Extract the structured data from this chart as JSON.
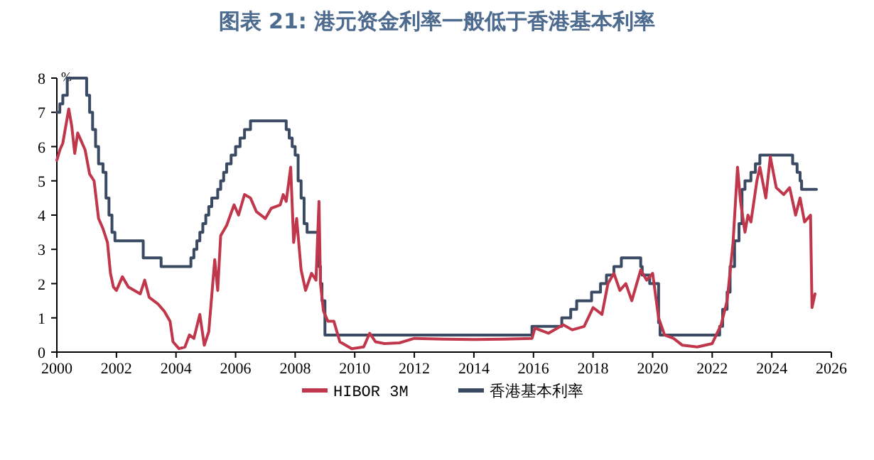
{
  "chart_data": {
    "type": "line",
    "title": "图表 21: 港元资金利率一般低于香港基本利率",
    "ylabel": "%",
    "xlim": [
      2000,
      2026
    ],
    "xticks": [
      2000,
      2002,
      2004,
      2006,
      2008,
      2010,
      2012,
      2014,
      2016,
      2018,
      2020,
      2022,
      2024,
      2026
    ],
    "ylim": [
      0,
      8
    ],
    "yticks": [
      0,
      1,
      2,
      3,
      4,
      5,
      6,
      7,
      8
    ],
    "grid": false,
    "legend": "bottom",
    "series": [
      {
        "name": "HIBOR 3M",
        "type": "line",
        "color": "#c0364a",
        "x": [
          2000.0,
          2000.1,
          2000.2,
          2000.3,
          2000.4,
          2000.5,
          2000.6,
          2000.7,
          2000.8,
          2000.95,
          2001.1,
          2001.25,
          2001.4,
          2001.55,
          2001.7,
          2001.8,
          2001.9,
          2002.0,
          2002.2,
          2002.4,
          2002.8,
          2002.95,
          2003.1,
          2003.4,
          2003.6,
          2003.8,
          2003.9,
          2004.1,
          2004.3,
          2004.45,
          2004.6,
          2004.8,
          2004.95,
          2005.1,
          2005.3,
          2005.4,
          2005.5,
          2005.7,
          2005.95,
          2006.1,
          2006.3,
          2006.5,
          2006.7,
          2007.0,
          2007.2,
          2007.5,
          2007.6,
          2007.7,
          2007.85,
          2007.95,
          2008.05,
          2008.2,
          2008.35,
          2008.55,
          2008.7,
          2008.8,
          2008.85,
          2008.95,
          2009.1,
          2009.3,
          2009.5,
          2009.9,
          2010.3,
          2010.5,
          2010.7,
          2011.0,
          2011.5,
          2012.0,
          2013.0,
          2014.0,
          2015.0,
          2015.95,
          2016.05,
          2016.5,
          2017.0,
          2017.3,
          2017.7,
          2018.0,
          2018.3,
          2018.5,
          2018.7,
          2018.9,
          2019.1,
          2019.3,
          2019.6,
          2019.8,
          2020.0,
          2020.2,
          2020.4,
          2020.7,
          2021.0,
          2021.5,
          2022.0,
          2022.3,
          2022.5,
          2022.7,
          2022.85,
          2022.95,
          2023.1,
          2023.2,
          2023.3,
          2023.5,
          2023.6,
          2023.8,
          2023.95,
          2024.15,
          2024.4,
          2024.6,
          2024.8,
          2024.95,
          2025.1,
          2025.3,
          2025.35,
          2025.45
        ],
        "values": [
          5.6,
          5.9,
          6.1,
          6.6,
          7.1,
          6.6,
          5.8,
          6.4,
          6.2,
          5.9,
          5.2,
          5.0,
          3.9,
          3.6,
          3.2,
          2.3,
          1.9,
          1.8,
          2.2,
          1.9,
          1.7,
          2.1,
          1.6,
          1.4,
          1.2,
          0.9,
          0.3,
          0.1,
          0.15,
          0.5,
          0.4,
          1.1,
          0.2,
          0.6,
          2.7,
          1.8,
          3.4,
          3.7,
          4.3,
          4.0,
          4.6,
          4.5,
          4.1,
          3.9,
          4.2,
          4.3,
          4.6,
          4.4,
          5.4,
          3.2,
          3.9,
          2.4,
          1.8,
          2.3,
          2.1,
          4.4,
          2.0,
          1.2,
          0.9,
          0.9,
          0.3,
          0.1,
          0.15,
          0.55,
          0.3,
          0.25,
          0.27,
          0.4,
          0.38,
          0.37,
          0.38,
          0.4,
          0.7,
          0.55,
          0.8,
          0.65,
          0.75,
          1.3,
          1.1,
          2.0,
          2.3,
          1.8,
          2.0,
          1.5,
          2.4,
          2.1,
          2.3,
          1.0,
          0.5,
          0.4,
          0.2,
          0.15,
          0.25,
          0.8,
          1.5,
          3.2,
          5.4,
          4.4,
          3.5,
          4.0,
          3.8,
          5.0,
          5.4,
          4.5,
          5.7,
          4.8,
          4.6,
          4.8,
          4.0,
          4.5,
          3.8,
          4.0,
          1.3,
          1.7
        ]
      },
      {
        "name": "香港基本利率",
        "type": "step",
        "color": "#3b4a63",
        "x": [
          2000.0,
          2000.1,
          2000.2,
          2000.35,
          2001.0,
          2001.1,
          2001.2,
          2001.3,
          2001.4,
          2001.55,
          2001.65,
          2001.75,
          2001.85,
          2001.95,
          2002.9,
          2003.5,
          2004.5,
          2004.6,
          2004.7,
          2004.8,
          2004.9,
          2005.0,
          2005.1,
          2005.2,
          2005.4,
          2005.5,
          2005.6,
          2005.7,
          2005.85,
          2006.0,
          2006.15,
          2006.3,
          2006.5,
          2007.7,
          2007.8,
          2007.9,
          2008.0,
          2008.1,
          2008.2,
          2008.3,
          2008.4,
          2008.8,
          2008.85,
          2008.9,
          2009.0,
          2015.95,
          2016.95,
          2017.25,
          2017.45,
          2017.95,
          2018.25,
          2018.45,
          2018.7,
          2018.95,
          2019.6,
          2019.65,
          2019.9,
          2020.2,
          2020.25,
          2022.25,
          2022.35,
          2022.5,
          2022.6,
          2022.75,
          2022.9,
          2023.0,
          2023.1,
          2023.3,
          2023.45,
          2023.6,
          2024.7,
          2024.85,
          2024.95,
          2025.0,
          2025.5
        ],
        "values": [
          7.0,
          7.25,
          7.5,
          8.0,
          7.5,
          7.0,
          6.5,
          6.0,
          5.5,
          5.25,
          4.5,
          4.0,
          3.5,
          3.25,
          2.75,
          2.5,
          2.75,
          3.0,
          3.25,
          3.5,
          3.75,
          4.0,
          4.25,
          4.5,
          4.75,
          5.0,
          5.25,
          5.5,
          5.75,
          6.0,
          6.25,
          6.5,
          6.75,
          6.5,
          6.25,
          6.0,
          5.75,
          5.0,
          4.5,
          3.75,
          3.5,
          2.5,
          2.0,
          1.5,
          0.5,
          0.75,
          1.0,
          1.25,
          1.5,
          1.75,
          2.0,
          2.25,
          2.5,
          2.75,
          2.5,
          2.25,
          2.0,
          0.86,
          0.5,
          0.75,
          1.25,
          1.75,
          2.5,
          3.25,
          3.75,
          4.75,
          5.0,
          5.25,
          5.5,
          5.75,
          5.5,
          5.25,
          5.0,
          4.75,
          4.75
        ]
      }
    ]
  }
}
